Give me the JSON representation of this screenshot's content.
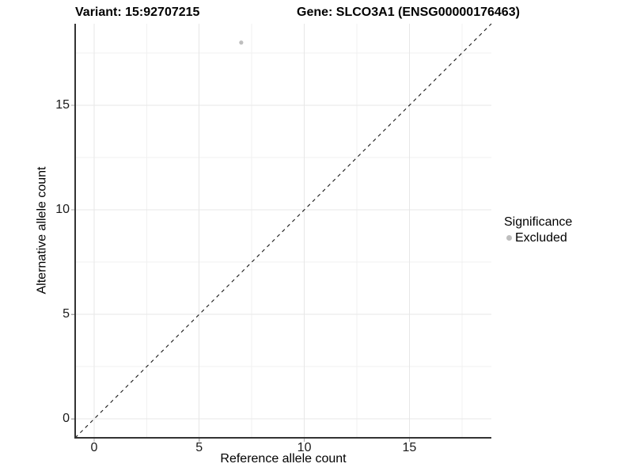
{
  "chart_data": {
    "type": "scatter",
    "titles": {
      "variant": "Variant: 15:92707215",
      "gene": "Gene: SLCO3A1 (ENSG00000176463)"
    },
    "xlabel": "Reference allele count",
    "ylabel": "Alternative allele count",
    "xlim": [
      -0.9,
      18.9
    ],
    "ylim": [
      -0.9,
      18.9
    ],
    "x_major_ticks": [
      0,
      5,
      10,
      15
    ],
    "y_major_ticks": [
      0,
      5,
      10,
      15
    ],
    "x_minor_ticks": [
      2.5,
      7.5,
      12.5,
      17.5
    ],
    "y_minor_ticks": [
      2.5,
      7.5,
      12.5,
      17.5
    ],
    "grid": "major+minor, light gray on white",
    "points": [
      {
        "x": 7,
        "y": 18,
        "series": "Excluded"
      }
    ],
    "reference_line": {
      "kind": "identity y=x",
      "style": "dashed",
      "color": "#1a1a1a"
    },
    "legend": {
      "title": "Significance",
      "position": "right",
      "items": [
        {
          "label": "Excluded",
          "color": "#bebebe"
        }
      ]
    },
    "colors": {
      "point": "#bebebe",
      "grid_major": "#e7e7e7",
      "grid_minor": "#f1f1f1",
      "axis_line": "#333333",
      "tick_mark": "#aaaaaa",
      "text": "#000000"
    }
  }
}
